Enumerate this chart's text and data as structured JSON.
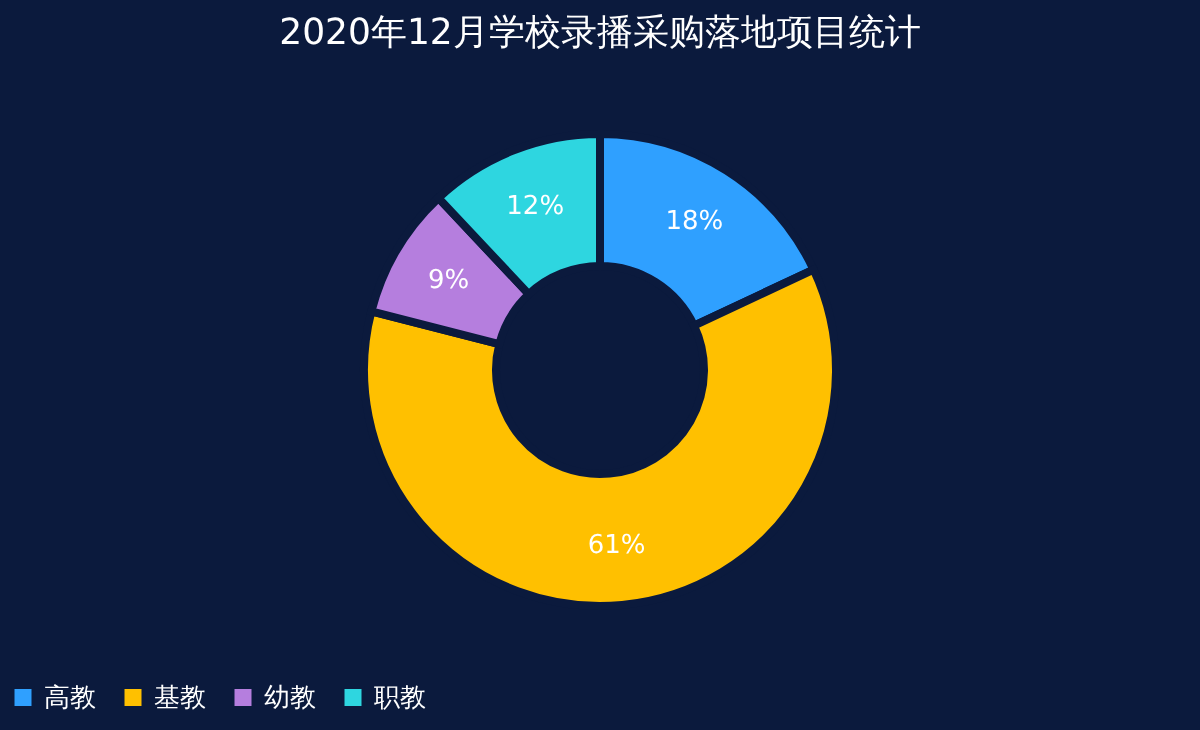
{
  "chart_data": {
    "type": "donut",
    "title": "2020年12月学校录播采购落地项目统计",
    "categories": [
      "高教",
      "基教",
      "幼教",
      "职教"
    ],
    "values": [
      18,
      61,
      9,
      12
    ],
    "colors": [
      "#2fa0ff",
      "#ffc000",
      "#b57ede",
      "#2ed6e0"
    ],
    "value_labels": [
      "18%",
      "61%",
      "9%",
      "12%"
    ],
    "legend": "bottom"
  }
}
